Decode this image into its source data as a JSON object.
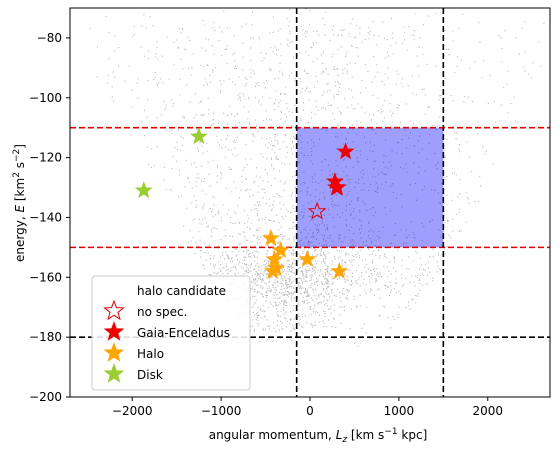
{
  "chart_data": {
    "type": "scatter",
    "title": "",
    "xlabel_prefix": "angular momentum, ",
    "xlabel_var": "L",
    "xlabel_sub": "z",
    "xlabel_units_a": " [km s",
    "xlabel_units_exp": "−1",
    "xlabel_units_b": " kpc]",
    "ylabel_prefix": "energy, ",
    "ylabel_var": "E",
    "ylabel_units_a": " [km",
    "ylabel_units_exp1": "2",
    "ylabel_units_b": " s",
    "ylabel_units_exp2": "−2",
    "ylabel_units_c": "]",
    "xlim": [
      -2700,
      2700
    ],
    "ylim": [
      -200,
      -70
    ],
    "xticks": [
      -2000,
      -1000,
      0,
      1000,
      2000
    ],
    "xtick_labels": [
      "−2000",
      "−1000",
      "0",
      "1000",
      "2000"
    ],
    "yticks": [
      -200,
      -180,
      -160,
      -140,
      -120,
      -100,
      -80
    ],
    "ytick_labels": [
      "−200",
      "−180",
      "−160",
      "−140",
      "−120",
      "−100",
      "−80"
    ],
    "grid": false,
    "legend_position": "lower-left",
    "background_points": "dense black point cloud of stars",
    "selection_box": {
      "x": [
        -150,
        1500
      ],
      "y": [
        -150,
        -110
      ],
      "color": "#9999ff"
    },
    "hlines": [
      {
        "y": -110,
        "color": "#e00000",
        "style": "dashed"
      },
      {
        "y": -150,
        "color": "#e00000",
        "style": "dashed"
      },
      {
        "y": -180,
        "color": "#000000",
        "style": "dashed"
      }
    ],
    "vlines": [
      {
        "x": -150,
        "color": "#000000",
        "style": "dashed"
      },
      {
        "x": 1500,
        "color": "#000000",
        "style": "dashed"
      }
    ],
    "legend": [
      {
        "label": "halo candidate",
        "marker": "none",
        "color": ""
      },
      {
        "label": "no spec.",
        "marker": "star-open",
        "color": "#e00000"
      },
      {
        "label": "Gaia-Enceladus",
        "marker": "star",
        "color": "#ee0000"
      },
      {
        "label": "Halo",
        "marker": "star",
        "color": "#ffa500"
      },
      {
        "label": "Disk",
        "marker": "star",
        "color": "#9acd32"
      }
    ],
    "series": [
      {
        "name": "no spec.",
        "marker": "star-open",
        "color": "#e00000",
        "points": [
          [
            80,
            -138
          ],
          [
            300,
            -130
          ]
        ]
      },
      {
        "name": "Gaia-Enceladus",
        "marker": "star",
        "color": "#ee0000",
        "points": [
          [
            400,
            -118
          ],
          [
            280,
            -128
          ],
          [
            310,
            -130
          ]
        ]
      },
      {
        "name": "Halo",
        "marker": "star",
        "color": "#ffa500",
        "points": [
          [
            -440,
            -147
          ],
          [
            -330,
            -151
          ],
          [
            -400,
            -154
          ],
          [
            -30,
            -154
          ],
          [
            -380,
            -157
          ],
          [
            -420,
            -158
          ],
          [
            330,
            -158
          ]
        ]
      },
      {
        "name": "Disk",
        "marker": "star",
        "color": "#9acd32",
        "points": [
          [
            -1250,
            -113
          ],
          [
            -1870,
            -131
          ]
        ]
      }
    ]
  }
}
